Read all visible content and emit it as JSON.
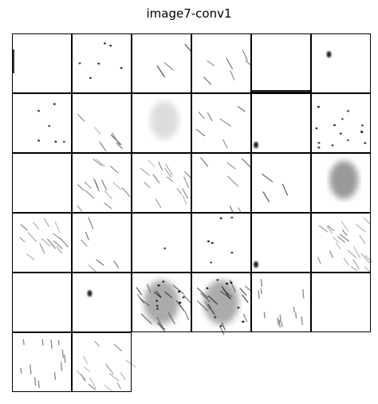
{
  "figure": {
    "title": "image7-conv1",
    "rows": 6,
    "cols": 6,
    "tile_count": 32,
    "tiles": [
      {
        "kind": "faint-edge"
      },
      {
        "kind": "dots"
      },
      {
        "kind": "diagonal-streak"
      },
      {
        "kind": "sparse-streaks"
      },
      {
        "kind": "bottom-edge"
      },
      {
        "kind": "single-blob"
      },
      {
        "kind": "sparse-dots"
      },
      {
        "kind": "sparse-streaks"
      },
      {
        "kind": "soft-blob"
      },
      {
        "kind": "diagonal-lines"
      },
      {
        "kind": "corner-blob"
      },
      {
        "kind": "scattered-dots"
      },
      {
        "kind": "empty"
      },
      {
        "kind": "many-streaks"
      },
      {
        "kind": "many-streaks"
      },
      {
        "kind": "few-streaks"
      },
      {
        "kind": "single-streak"
      },
      {
        "kind": "soft-blob-dark"
      },
      {
        "kind": "many-streaks"
      },
      {
        "kind": "top-streaks"
      },
      {
        "kind": "mostly-empty"
      },
      {
        "kind": "sparse-dots"
      },
      {
        "kind": "corner-dot"
      },
      {
        "kind": "dense-streaks"
      },
      {
        "kind": "empty"
      },
      {
        "kind": "single-dot"
      },
      {
        "kind": "dense-texture"
      },
      {
        "kind": "dense-texture"
      },
      {
        "kind": "vertical-texture"
      },
      {
        "kind": "empty"
      },
      {
        "kind": "vertical-streaks"
      },
      {
        "kind": "many-streaks"
      }
    ]
  }
}
